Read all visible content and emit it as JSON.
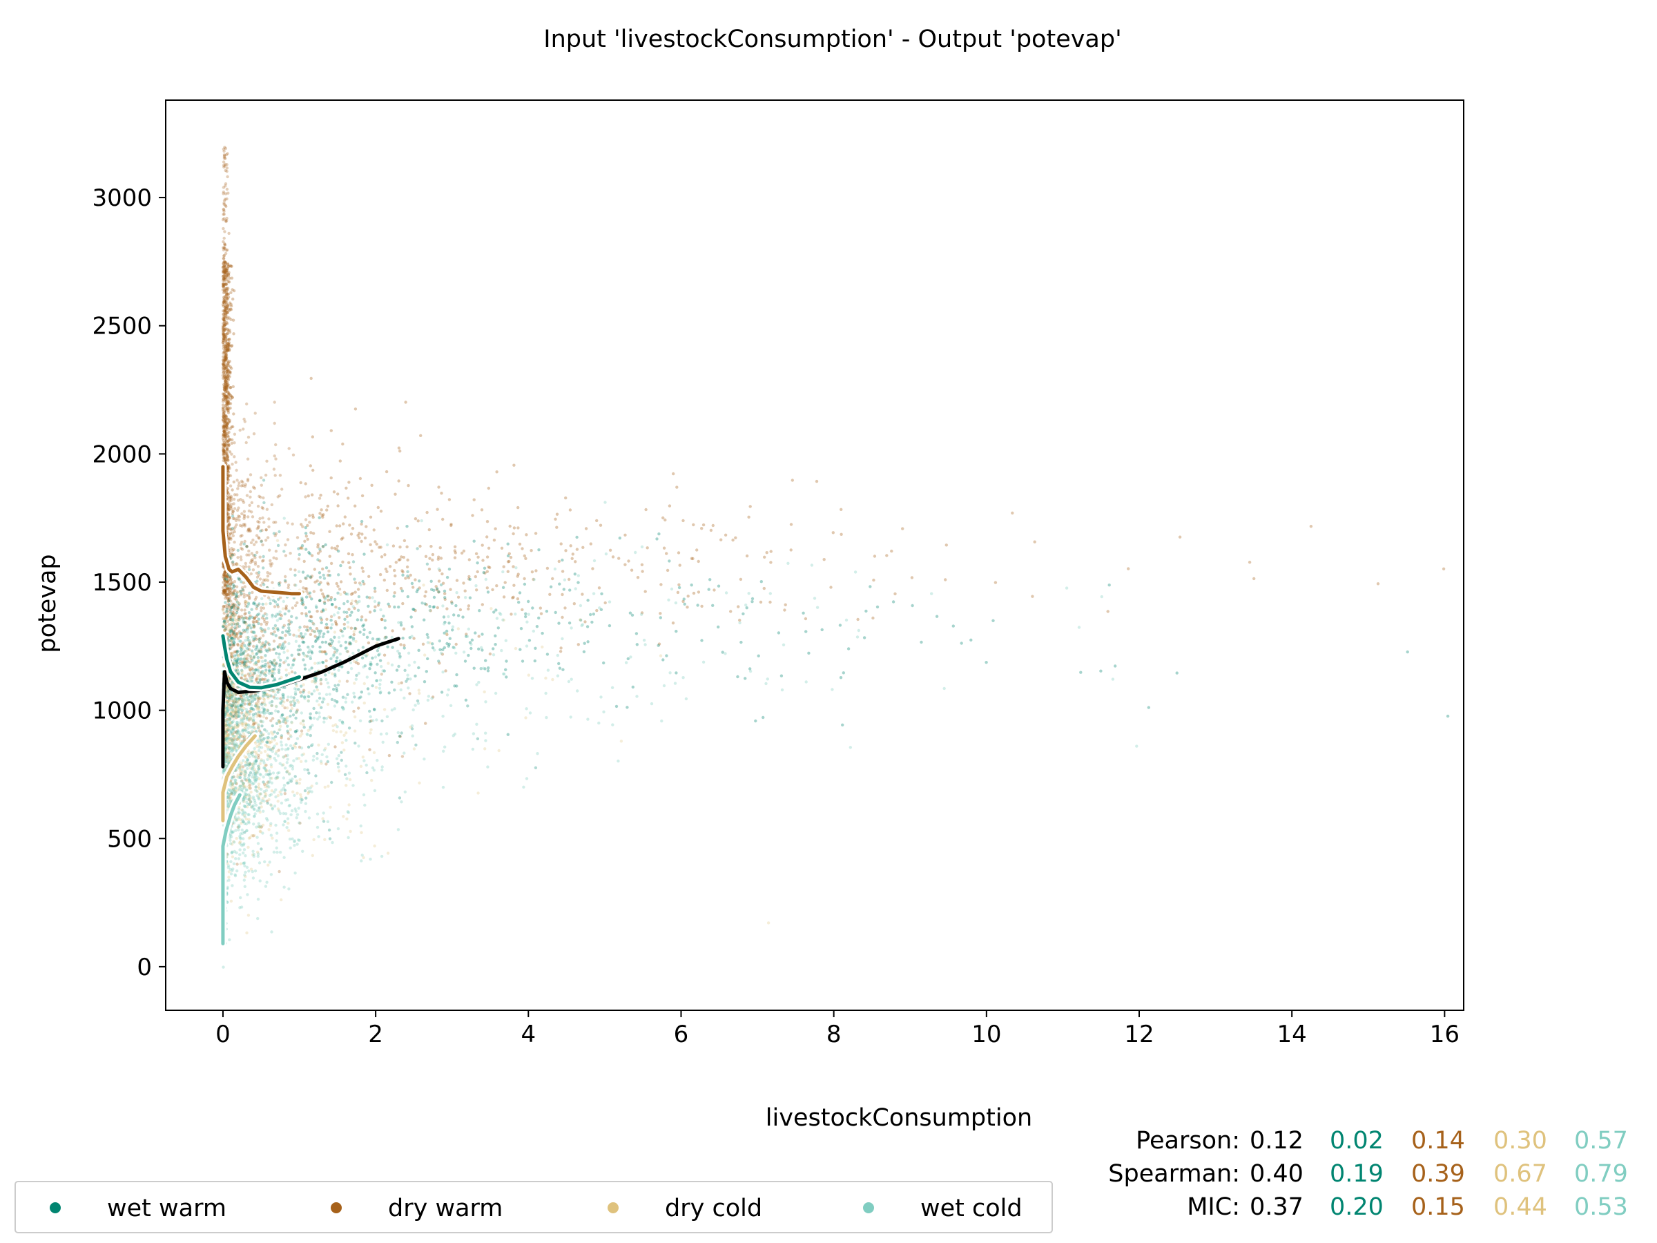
{
  "chart_data": {
    "type": "scatter",
    "title": "Input 'livestockConsumption' - Output 'potevap'",
    "xlabel": "livestockConsumption",
    "ylabel": "potevap",
    "xlim": [
      -0.75,
      16.25
    ],
    "ylim": [
      -170,
      3380
    ],
    "x_ticks": [
      0,
      2,
      4,
      6,
      8,
      10,
      12,
      14,
      16
    ],
    "y_ticks": [
      0,
      500,
      1000,
      1500,
      2000,
      2500,
      3000
    ],
    "grid": false,
    "legend_position": "bottom-left (below plot)",
    "series": [
      {
        "name": "wet warm",
        "color": "#018571"
      },
      {
        "name": "dry warm",
        "color": "#a6611a"
      },
      {
        "name": "dry cold",
        "color": "#dfc27d"
      },
      {
        "name": "wet cold",
        "color": "#80cdc1"
      }
    ],
    "trend_lines": [
      {
        "series": "all",
        "color": "#000000",
        "points": [
          [
            0.0,
            780
          ],
          [
            0.0,
            1000
          ],
          [
            0.02,
            1150
          ],
          [
            0.05,
            1110
          ],
          [
            0.1,
            1085
          ],
          [
            0.2,
            1070
          ],
          [
            0.4,
            1075
          ],
          [
            0.6,
            1085
          ],
          [
            0.8,
            1100
          ],
          [
            1.0,
            1120
          ],
          [
            1.3,
            1150
          ],
          [
            1.6,
            1190
          ],
          [
            2.0,
            1250
          ],
          [
            2.3,
            1280
          ]
        ]
      },
      {
        "series": "wet warm",
        "color": "#018571",
        "points": [
          [
            0.0,
            1290
          ],
          [
            0.02,
            1250
          ],
          [
            0.05,
            1200
          ],
          [
            0.1,
            1150
          ],
          [
            0.2,
            1110
          ],
          [
            0.35,
            1090
          ],
          [
            0.5,
            1088
          ],
          [
            0.7,
            1100
          ],
          [
            0.9,
            1120
          ],
          [
            1.0,
            1130
          ]
        ]
      },
      {
        "series": "dry warm",
        "color": "#a6611a",
        "points": [
          [
            0.0,
            1950
          ],
          [
            0.0,
            1700
          ],
          [
            0.03,
            1600
          ],
          [
            0.08,
            1550
          ],
          [
            0.12,
            1540
          ],
          [
            0.2,
            1550
          ],
          [
            0.3,
            1520
          ],
          [
            0.4,
            1480
          ],
          [
            0.5,
            1465
          ],
          [
            0.7,
            1460
          ],
          [
            0.9,
            1455
          ],
          [
            1.0,
            1455
          ]
        ]
      },
      {
        "series": "dry cold",
        "color": "#dfc27d",
        "points": [
          [
            0.0,
            570
          ],
          [
            0.0,
            680
          ],
          [
            0.05,
            740
          ],
          [
            0.12,
            780
          ],
          [
            0.2,
            820
          ],
          [
            0.3,
            860
          ],
          [
            0.42,
            900
          ]
        ]
      },
      {
        "series": "wet cold",
        "color": "#80cdc1",
        "points": [
          [
            0.0,
            90
          ],
          [
            0.0,
            240
          ],
          [
            0.0,
            330
          ],
          [
            0.0,
            470
          ],
          [
            0.04,
            530
          ],
          [
            0.1,
            590
          ],
          [
            0.15,
            630
          ],
          [
            0.22,
            670
          ]
        ]
      }
    ],
    "stats": {
      "labels": [
        "Pearson:",
        "Spearman:",
        "MIC:"
      ],
      "rows": [
        [
          "0.12",
          "0.02",
          "0.14",
          "0.30",
          "0.57"
        ],
        [
          "0.40",
          "0.19",
          "0.39",
          "0.67",
          "0.79"
        ],
        [
          "0.37",
          "0.20",
          "0.15",
          "0.44",
          "0.53"
        ]
      ],
      "colors": [
        "#000000",
        "#018571",
        "#a6611a",
        "#dfc27d",
        "#80cdc1"
      ]
    }
  }
}
